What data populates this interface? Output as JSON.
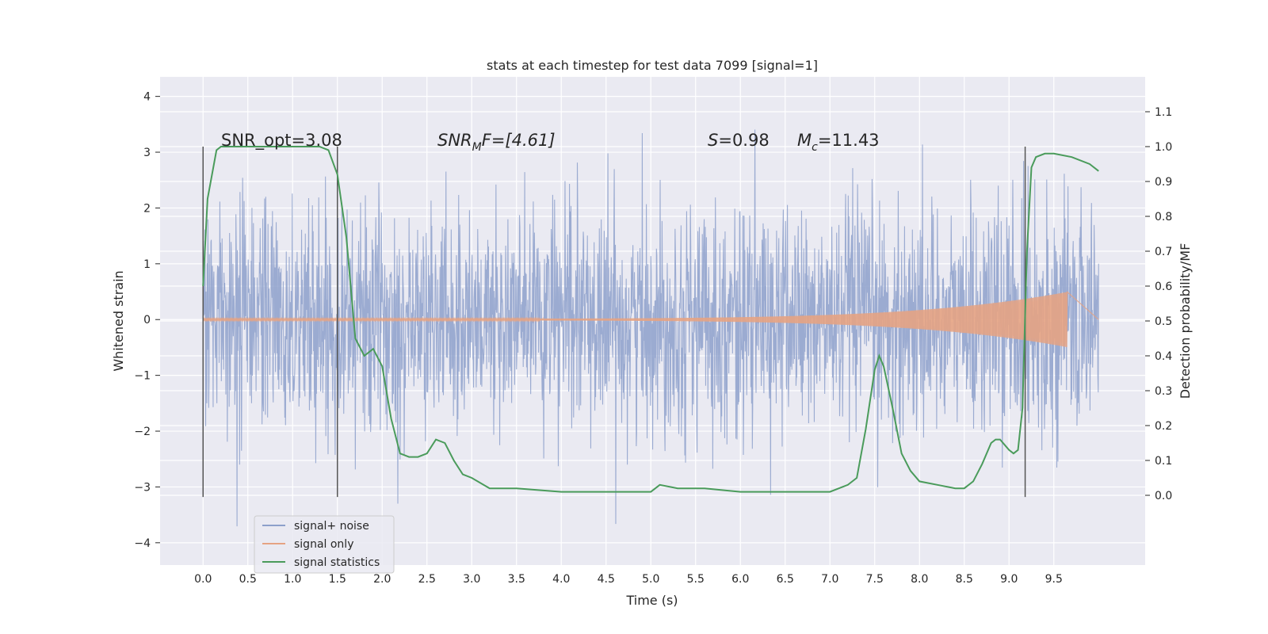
{
  "chart_data": {
    "type": "line",
    "title": "stats at each timestep for test data 7099 [signal=1]",
    "xlabel": "Time (s)",
    "ylabel_left": "Whitened strain",
    "ylabel_right": "Detection probability/MF",
    "xlim": [
      -0.48,
      10.52
    ],
    "ylim_left": [
      -4.4,
      4.35
    ],
    "ylim_right": [
      -0.2,
      1.2
    ],
    "x_ticks": [
      "0.0",
      "0.5",
      "1.0",
      "1.5",
      "2.0",
      "2.5",
      "3.0",
      "3.5",
      "4.0",
      "4.5",
      "5.0",
      "5.5",
      "6.0",
      "6.5",
      "7.0",
      "7.5",
      "8.0",
      "8.5",
      "9.0",
      "9.5"
    ],
    "y_ticks_left": [
      "4",
      "3",
      "2",
      "1",
      "0",
      "−1",
      "−2",
      "−3",
      "−4"
    ],
    "y_ticks_right": [
      "1.1",
      "1.0",
      "0.9",
      "0.8",
      "0.7",
      "0.6",
      "0.5",
      "0.4",
      "0.3",
      "0.2",
      "0.1",
      "0.0"
    ],
    "grid": true,
    "legend_position": "lower-left",
    "annotations": {
      "snr_opt": "SNR_opt=3.08",
      "snr_mf_base": "SNR",
      "snr_mf_sub": "M",
      "snr_mf_rest": "F=[4.61]",
      "s_label": "S",
      "s_value": "=0.98",
      "mc_base": "M",
      "mc_sub": "c",
      "mc_value": "=11.43"
    },
    "vertical_markers_x": [
      0.0,
      1.5,
      9.18
    ],
    "series": [
      {
        "name": "signal+ noise",
        "color": "#8da0cb",
        "axis": "left",
        "x_range": [
          0.0,
          10.0
        ],
        "amplitude_sd": 1.0
      },
      {
        "name": "signal only",
        "color": "#e5a383",
        "axis": "left",
        "x_range": [
          0.0,
          9.65
        ],
        "peak_amplitude": 0.48
      },
      {
        "name": "signal statistics",
        "color": "#4a9b5b",
        "axis": "right",
        "x": [
          0.0,
          0.05,
          0.1,
          0.15,
          0.2,
          0.3,
          0.5,
          0.8,
          1.0,
          1.2,
          1.3,
          1.4,
          1.5,
          1.6,
          1.7,
          1.8,
          1.9,
          2.0,
          2.1,
          2.2,
          2.3,
          2.4,
          2.5,
          2.6,
          2.7,
          2.8,
          2.9,
          3.0,
          3.2,
          3.5,
          4.0,
          4.3,
          4.5,
          4.8,
          5.0,
          5.1,
          5.3,
          5.6,
          6.0,
          6.5,
          7.0,
          7.1,
          7.2,
          7.3,
          7.4,
          7.5,
          7.55,
          7.6,
          7.7,
          7.8,
          7.9,
          8.0,
          8.2,
          8.4,
          8.5,
          8.6,
          8.7,
          8.8,
          8.85,
          8.9,
          9.0,
          9.05,
          9.1,
          9.15,
          9.2,
          9.25,
          9.3,
          9.4,
          9.5,
          9.7,
          9.9,
          10.0
        ],
        "values": [
          0.6,
          0.85,
          0.92,
          0.99,
          1.0,
          1.0,
          1.0,
          1.0,
          1.0,
          1.0,
          1.0,
          0.99,
          0.92,
          0.74,
          0.45,
          0.4,
          0.42,
          0.37,
          0.22,
          0.12,
          0.11,
          0.11,
          0.12,
          0.16,
          0.15,
          0.1,
          0.06,
          0.05,
          0.02,
          0.02,
          0.01,
          0.01,
          0.01,
          0.01,
          0.01,
          0.03,
          0.02,
          0.02,
          0.01,
          0.01,
          0.01,
          0.02,
          0.03,
          0.05,
          0.19,
          0.36,
          0.4,
          0.37,
          0.25,
          0.12,
          0.07,
          0.04,
          0.03,
          0.02,
          0.02,
          0.04,
          0.09,
          0.15,
          0.16,
          0.16,
          0.13,
          0.12,
          0.13,
          0.25,
          0.7,
          0.94,
          0.97,
          0.98,
          0.98,
          0.97,
          0.95,
          0.93
        ]
      }
    ]
  }
}
